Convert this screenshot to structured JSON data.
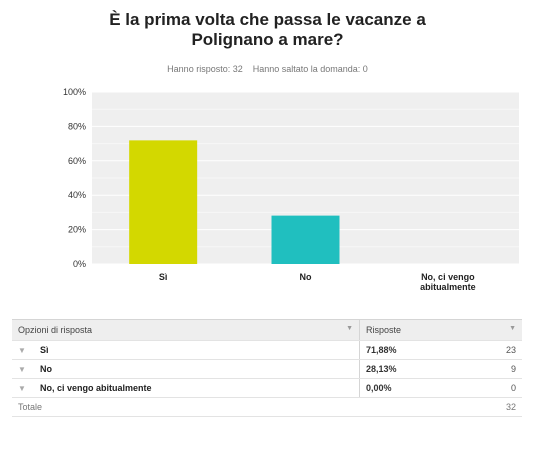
{
  "title_line1": "È la prima volta che passa le vacanze a",
  "title_line2": "Polignano a mare?",
  "answered": "Hanno risposto: 32",
  "skipped": "Hanno saltato la domanda: 0",
  "colors": {
    "bar1": "#d3d800",
    "bar2": "#20bfbf",
    "plot_bg": "#efefef",
    "grid": "#ffffff"
  },
  "chart_data": {
    "type": "bar",
    "categories": [
      "Sì",
      "No",
      "No, ci vengo abitualmente"
    ],
    "category_lines": [
      [
        "Sì"
      ],
      [
        "No"
      ],
      [
        "No, ci vengo",
        "abitualmente"
      ]
    ],
    "values": [
      71.88,
      28.13,
      0
    ],
    "ylim": [
      0,
      100
    ],
    "yticks": [
      0,
      20,
      40,
      60,
      80,
      100
    ],
    "ytick_labels": [
      "0%",
      "20%",
      "40%",
      "60%",
      "80%",
      "100%"
    ],
    "grid": true,
    "title": "",
    "xlabel": "",
    "ylabel": ""
  },
  "table": {
    "headers": [
      "Opzioni di risposta",
      "Risposte"
    ],
    "rows": [
      {
        "label": "Sì",
        "percent": "71,88%",
        "count": "23"
      },
      {
        "label": "No",
        "percent": "28,13%",
        "count": "9"
      },
      {
        "label": "No, ci vengo abitualmente",
        "percent": "0,00%",
        "count": "0"
      }
    ],
    "total_label": "Totale",
    "total_value": "32"
  }
}
